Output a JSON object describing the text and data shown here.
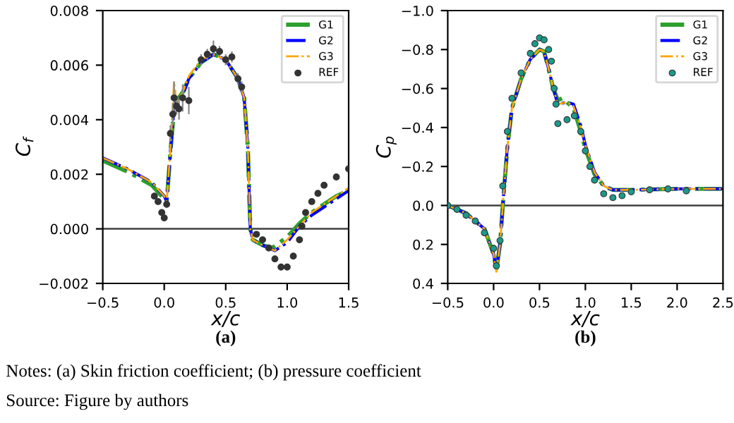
{
  "chart_data": [
    {
      "type": "line",
      "xlabel": "x/c",
      "ylabel": "C$_{f}$",
      "xlim": [
        -0.5,
        1.5
      ],
      "xticks": [
        {
          "value": -0.5,
          "label": "−0.5"
        },
        {
          "value": 0,
          "label": "0.0"
        },
        {
          "value": 0.5,
          "label": "0.5"
        },
        {
          "value": 1,
          "label": "1.0"
        },
        {
          "value": 1.5,
          "label": "1.5"
        }
      ],
      "ylim": [
        -0.002,
        0.008
      ],
      "yticks": [
        {
          "value": -0.002,
          "label": "−0.002"
        },
        {
          "value": 0,
          "label": "0.000"
        },
        {
          "value": 0.002,
          "label": "0.002"
        },
        {
          "value": 0.004,
          "label": "0.004"
        },
        {
          "value": 0.006,
          "label": "0.006"
        },
        {
          "value": 0.008,
          "label": "0.008"
        }
      ],
      "ref_lines": [
        {
          "axis": "y",
          "value": 0,
          "color": "#404040"
        }
      ],
      "legend": "top right",
      "line_style": "dashed",
      "grid": false,
      "annotations": [
        "(a)",
        "Notes: (a) Skin friction coefficient; (b) pressure coefficient",
        "Source: Figure by authors"
      ],
      "series": [
        {
          "name": "G1",
          "color": "#2ca02c",
          "x": [
            -0.5,
            -0.3,
            -0.1,
            0.0,
            0.02,
            0.05,
            0.08,
            0.1,
            0.15,
            0.2,
            0.3,
            0.4,
            0.5,
            0.6,
            0.65,
            0.68,
            0.7,
            0.72,
            0.8,
            0.88,
            1.0,
            1.1,
            1.2,
            1.3,
            1.4,
            1.5
          ],
          "values": [
            0.0025,
            0.0021,
            0.0016,
            0.0011,
            0.001,
            0.0028,
            0.0044,
            0.0047,
            0.005,
            0.0055,
            0.0061,
            0.0064,
            0.0062,
            0.0055,
            0.0048,
            0.003,
            0.0,
            -0.0004,
            -0.0006,
            -0.0007,
            -0.0003,
            0.0002,
            0.0006,
            0.0009,
            0.0012,
            0.0014
          ]
        },
        {
          "name": "G2",
          "color": "#0000ff",
          "x": [
            -0.5,
            -0.3,
            -0.1,
            0.0,
            0.02,
            0.05,
            0.08,
            0.1,
            0.15,
            0.2,
            0.3,
            0.4,
            0.5,
            0.6,
            0.65,
            0.68,
            0.7,
            0.72,
            0.8,
            0.9,
            1.0,
            1.1,
            1.2,
            1.3,
            1.4,
            1.5
          ],
          "values": [
            0.0026,
            0.0022,
            0.0017,
            0.0012,
            0.001,
            0.0028,
            0.0045,
            0.0047,
            0.0049,
            0.0055,
            0.0061,
            0.0064,
            0.0062,
            0.0055,
            0.0048,
            0.003,
            0.0,
            -0.0004,
            -0.0006,
            -0.0008,
            -0.0005,
            0.0001,
            0.0005,
            0.0008,
            0.0011,
            0.0014
          ]
        },
        {
          "name": "G3",
          "color": "#ffa500",
          "x": [
            -0.5,
            -0.3,
            -0.1,
            0.0,
            0.02,
            0.05,
            0.08,
            0.1,
            0.15,
            0.2,
            0.3,
            0.4,
            0.5,
            0.6,
            0.65,
            0.68,
            0.7,
            0.72,
            0.8,
            0.9,
            1.0,
            1.1,
            1.2,
            1.3,
            1.4,
            1.5
          ],
          "values": [
            0.0026,
            0.0022,
            0.0017,
            0.0012,
            0.001,
            0.0029,
            0.0054,
            0.0046,
            0.005,
            0.0056,
            0.0062,
            0.0064,
            0.0062,
            0.0055,
            0.0048,
            0.003,
            0.0,
            -0.0004,
            -0.0006,
            -0.0008,
            -0.0004,
            0.0001,
            0.0006,
            0.0009,
            0.0012,
            0.0015
          ]
        },
        {
          "name": "REF",
          "type": "scatter",
          "marker": "circle",
          "color": "#333333",
          "x": [
            -0.08,
            -0.05,
            -0.02,
            0.0,
            0.02,
            0.05,
            0.07,
            0.08,
            0.1,
            0.12,
            0.15,
            0.2,
            0.3,
            0.35,
            0.4,
            0.45,
            0.5,
            0.55,
            0.6,
            0.63,
            0.75,
            0.8,
            0.85,
            0.9,
            0.95,
            1.0,
            1.05,
            1.1,
            1.12,
            1.15,
            1.2,
            1.25,
            1.3,
            1.4,
            1.5
          ],
          "values": [
            0.0012,
            0.001,
            0.0006,
            0.0004,
            0.0009,
            0.0035,
            0.0042,
            0.0048,
            0.0045,
            0.0044,
            0.0048,
            0.0047,
            0.0062,
            0.0064,
            0.0066,
            0.0065,
            0.0062,
            0.0063,
            0.0055,
            0.0052,
            -0.0002,
            -0.0004,
            -0.0007,
            -0.0011,
            -0.0014,
            -0.0014,
            -0.001,
            -0.0004,
            0.0001,
            0.0006,
            0.001,
            0.0013,
            0.0016,
            0.0019,
            0.0022
          ],
          "errors": [
            null,
            null,
            null,
            null,
            null,
            0.0003,
            0.0004,
            0.0006,
            0.0003,
            0.0004,
            0.0005,
            0.0005,
            0.0002,
            0.0002,
            0.0003,
            0.0002,
            0.0002,
            0.0002,
            0.0002,
            0.0002,
            null,
            null,
            null,
            null,
            null,
            null,
            null,
            null,
            null,
            null,
            null,
            null,
            null,
            null,
            null
          ]
        }
      ]
    },
    {
      "type": "line",
      "xlabel": "x/c",
      "ylabel": "C$_{p}$",
      "xlim": [
        -0.5,
        2.5
      ],
      "xticks": [
        {
          "value": -0.5,
          "label": "−0.5"
        },
        {
          "value": 0,
          "label": "0.0"
        },
        {
          "value": 0.5,
          "label": "0.5"
        },
        {
          "value": 1,
          "label": "1.0"
        },
        {
          "value": 1.5,
          "label": "1.5"
        },
        {
          "value": 2,
          "label": "2.0"
        },
        {
          "value": 2.5,
          "label": "2.5"
        }
      ],
      "ylim": [
        0.4,
        -1.0
      ],
      "yticks": [
        {
          "value": -1.0,
          "label": "−1.0"
        },
        {
          "value": -0.8,
          "label": "−0.8"
        },
        {
          "value": -0.6,
          "label": "−0.6"
        },
        {
          "value": -0.4,
          "label": "−0.4"
        },
        {
          "value": -0.2,
          "label": "−0.2"
        },
        {
          "value": 0,
          "label": "0.0"
        },
        {
          "value": 0.2,
          "label": "0.2"
        },
        {
          "value": 0.4,
          "label": "0.4"
        }
      ],
      "ref_lines": [
        {
          "axis": "y",
          "value": 0,
          "color": "#404040"
        }
      ],
      "legend": "top right",
      "line_style": "dashed",
      "grid": false,
      "annotations": [
        "(b)"
      ],
      "series": [
        {
          "name": "G1",
          "color": "#2ca02c",
          "x": [
            -0.5,
            -0.3,
            -0.1,
            0.0,
            0.03,
            0.07,
            0.1,
            0.15,
            0.2,
            0.3,
            0.4,
            0.5,
            0.55,
            0.6,
            0.65,
            0.7,
            0.75,
            0.87,
            0.95,
            1.0,
            1.1,
            1.2,
            1.3,
            1.5,
            2.0,
            2.5
          ],
          "values": [
            0.0,
            0.04,
            0.12,
            0.25,
            0.33,
            0.2,
            0.0,
            -0.3,
            -0.5,
            -0.65,
            -0.75,
            -0.8,
            -0.79,
            -0.7,
            -0.6,
            -0.54,
            -0.55,
            -0.5,
            -0.38,
            -0.29,
            -0.16,
            -0.1,
            -0.08,
            -0.08,
            -0.085,
            -0.085
          ]
        },
        {
          "name": "G2",
          "color": "#0000ff",
          "x": [
            -0.5,
            -0.3,
            -0.1,
            0.0,
            0.03,
            0.07,
            0.1,
            0.15,
            0.2,
            0.3,
            0.4,
            0.5,
            0.55,
            0.6,
            0.65,
            0.7,
            0.8,
            0.87,
            0.95,
            1.0,
            1.1,
            1.2,
            1.3,
            1.5,
            2.0,
            2.5
          ],
          "values": [
            0.0,
            0.04,
            0.12,
            0.25,
            0.33,
            0.2,
            0.0,
            -0.3,
            -0.5,
            -0.65,
            -0.75,
            -0.8,
            -0.79,
            -0.7,
            -0.6,
            -0.52,
            -0.53,
            -0.52,
            -0.41,
            -0.31,
            -0.17,
            -0.1,
            -0.08,
            -0.08,
            -0.085,
            -0.085
          ]
        },
        {
          "name": "G3",
          "color": "#ffa500",
          "x": [
            -0.5,
            -0.3,
            -0.1,
            0.0,
            0.03,
            0.07,
            0.1,
            0.15,
            0.2,
            0.3,
            0.4,
            0.5,
            0.55,
            0.6,
            0.65,
            0.7,
            0.8,
            0.87,
            0.95,
            1.0,
            1.1,
            1.2,
            1.3,
            1.5,
            2.0,
            2.5
          ],
          "values": [
            0.0,
            0.04,
            0.12,
            0.25,
            0.34,
            0.2,
            0.0,
            -0.3,
            -0.5,
            -0.65,
            -0.75,
            -0.8,
            -0.79,
            -0.7,
            -0.6,
            -0.52,
            -0.53,
            -0.51,
            -0.4,
            -0.31,
            -0.17,
            -0.1,
            -0.08,
            -0.08,
            -0.085,
            -0.085
          ]
        },
        {
          "name": "REF",
          "type": "scatter",
          "marker": "circle",
          "color": "#1a9a8a",
          "x": [
            -0.5,
            -0.4,
            -0.3,
            -0.2,
            -0.1,
            0.0,
            0.03,
            0.07,
            0.1,
            0.15,
            0.2,
            0.3,
            0.4,
            0.45,
            0.5,
            0.55,
            0.6,
            0.63,
            0.66,
            0.68,
            0.7,
            0.8,
            0.88,
            0.95,
            1.0,
            1.05,
            1.1,
            1.2,
            1.3,
            1.4,
            1.5,
            1.7,
            1.9,
            2.1
          ],
          "values": [
            0.0,
            0.02,
            0.05,
            0.08,
            0.14,
            0.22,
            0.31,
            0.18,
            -0.1,
            -0.38,
            -0.55,
            -0.68,
            -0.78,
            -0.83,
            -0.86,
            -0.85,
            -0.8,
            -0.74,
            -0.6,
            -0.52,
            -0.42,
            -0.44,
            -0.46,
            -0.38,
            -0.28,
            -0.2,
            -0.13,
            -0.06,
            -0.04,
            -0.05,
            -0.07,
            -0.08,
            -0.085,
            -0.075
          ]
        }
      ]
    }
  ]
}
